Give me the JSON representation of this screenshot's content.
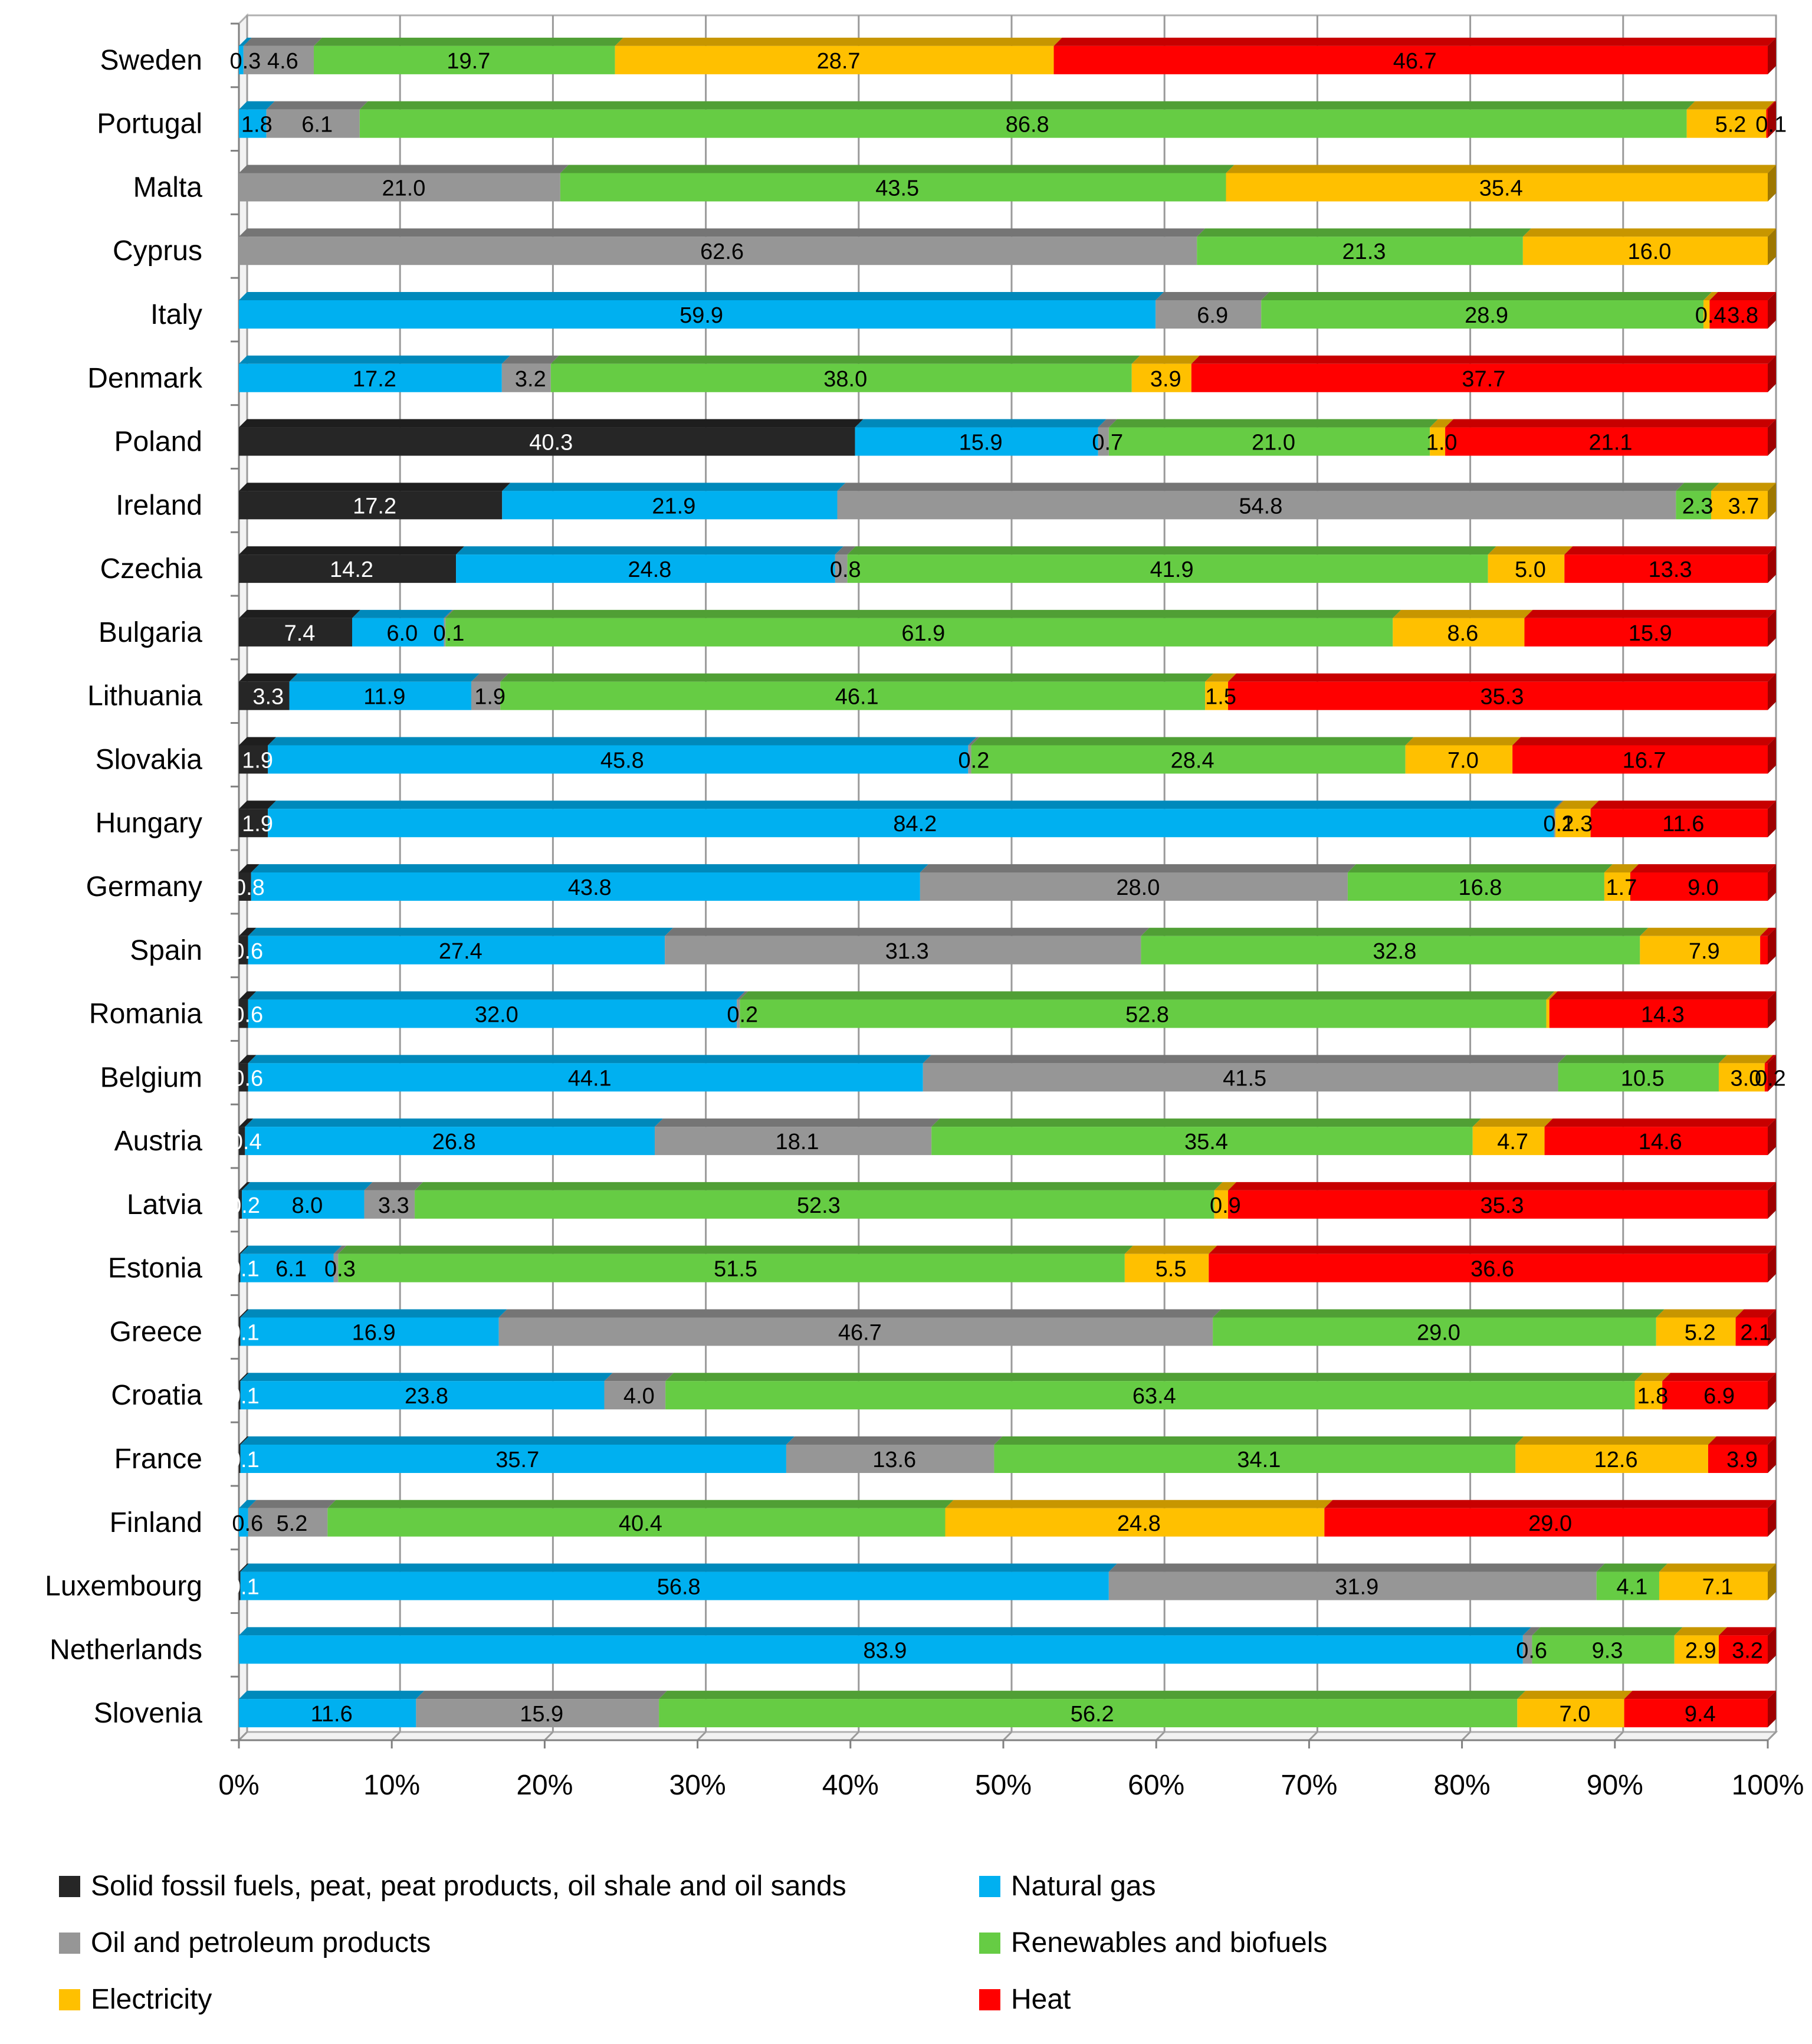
{
  "chart_data": {
    "type": "bar",
    "orientation": "horizontal",
    "stacked": "percent",
    "title": "",
    "xlabel": "",
    "ylabel": "",
    "xlim": [
      0,
      100
    ],
    "x_ticks": [
      "0%",
      "10%",
      "20%",
      "30%",
      "40%",
      "50%",
      "60%",
      "70%",
      "80%",
      "90%",
      "100%"
    ],
    "grid": true,
    "legend_position": "bottom",
    "categories": [
      "Sweden",
      "Portugal",
      "Malta",
      "Cyprus",
      "Italy",
      "Denmark",
      "Poland",
      "Ireland",
      "Czechia",
      "Bulgaria",
      "Lithuania",
      "Slovakia",
      "Hungary",
      "Germany",
      "Spain",
      "Romania",
      "Belgium",
      "Austria",
      "Latvia",
      "Estonia",
      "Greece",
      "Croatia",
      "France",
      "Finland",
      "Luxembourg",
      "Netherlands",
      "Slovenia"
    ],
    "series": [
      {
        "name": "Solid fossil fuels, peat, peat products, oil shale and oil sands",
        "color": "#262626",
        "values": [
          0,
          0,
          0,
          0,
          0,
          0,
          40.3,
          17.2,
          14.2,
          7.4,
          3.3,
          1.9,
          1.9,
          0.8,
          0.6,
          0.6,
          0.6,
          0.4,
          0.2,
          0.1,
          0.1,
          0.1,
          0.1,
          0,
          0.1,
          0,
          0
        ],
        "labels": [
          "",
          "",
          "",
          "",
          "",
          "",
          "40.3",
          "17.2",
          "14.2",
          "7.4",
          "3.3",
          "1.9",
          "1.9",
          "0.8",
          "0.6",
          "0.6",
          "0.6",
          "0.4",
          "0.2",
          "0.1",
          "0.1",
          "0.1",
          "0.1",
          "",
          "0.1",
          "",
          ""
        ]
      },
      {
        "name": "Natural gas",
        "color": "#00b0f0",
        "values": [
          0.3,
          1.8,
          0,
          0,
          59.9,
          17.2,
          15.9,
          21.9,
          24.8,
          6.0,
          11.9,
          45.8,
          84.2,
          43.8,
          27.4,
          32.0,
          44.1,
          26.8,
          8.0,
          6.1,
          16.9,
          23.8,
          35.7,
          0.6,
          56.8,
          83.9,
          11.6
        ],
        "labels": [
          "0.3",
          "1.8",
          "",
          "",
          "59.9",
          "17.2",
          "15.9",
          "21.9",
          "24.8",
          "6.0",
          "11.9",
          "45.8",
          "84.2",
          "43.8",
          "27.4",
          "32.0",
          "44.1",
          "26.8",
          "8.0",
          "6.1",
          "16.9",
          "23.8",
          "35.7",
          "0.6",
          "56.8",
          "83.9",
          "11.6"
        ]
      },
      {
        "name": "Oil and petroleum products",
        "color": "#969696",
        "values": [
          4.6,
          6.1,
          21.0,
          62.6,
          6.9,
          3.2,
          0.7,
          54.8,
          0.8,
          0.1,
          1.9,
          0.2,
          0.1,
          28.0,
          31.3,
          0.2,
          41.5,
          18.1,
          3.3,
          0.3,
          46.7,
          4.0,
          13.6,
          5.2,
          31.9,
          0.6,
          15.9
        ],
        "labels": [
          "4.6",
          "6.1",
          "21.0",
          "62.6",
          "6.9",
          "3.2",
          "0.7",
          "54.8",
          "0.8",
          "0.1",
          "1.9",
          "0.2",
          "0.1",
          "28.0",
          "31.3",
          "0.2",
          "41.5",
          "18.1",
          "3.3",
          "0.3",
          "46.7",
          "4.0",
          "13.6",
          "5.2",
          "31.9",
          "0.6",
          "15.9"
        ]
      },
      {
        "name": "Renewables and biofuels",
        "color": "#66cc44",
        "values": [
          19.7,
          86.8,
          43.5,
          21.3,
          28.9,
          38.0,
          21.0,
          2.3,
          41.9,
          61.9,
          46.1,
          28.4,
          0,
          16.8,
          32.8,
          52.8,
          10.5,
          35.4,
          52.3,
          51.5,
          29.0,
          63.4,
          34.1,
          40.4,
          4.1,
          9.3,
          56.2
        ],
        "labels": [
          "19.7",
          "86.8",
          "43.5",
          "21.3",
          "28.9",
          "38.0",
          "21.0",
          "2.3",
          "41.9",
          "61.9",
          "46.1",
          "28.4",
          "",
          "16.8",
          "32.8",
          "52.8",
          "10.5",
          "35.4",
          "52.3",
          "51.5",
          "29.0",
          "63.4",
          "34.1",
          "40.4",
          "4.1",
          "9.3",
          "56.2"
        ]
      },
      {
        "name": "Electricity",
        "color": "#ffc000",
        "values": [
          28.7,
          5.2,
          35.4,
          16.0,
          0.4,
          3.9,
          1.0,
          3.7,
          5.0,
          8.6,
          1.5,
          7.0,
          2.3,
          1.7,
          7.9,
          0.2,
          3.0,
          4.7,
          0.9,
          5.5,
          5.2,
          1.8,
          12.6,
          24.8,
          7.1,
          2.9,
          7.0
        ],
        "labels": [
          "28.7",
          "5.2",
          "35.4",
          "16.0",
          "0.4",
          "3.9",
          "1.0",
          "3.7",
          "5.0",
          "8.6",
          "1.5",
          "7.0",
          "2.3",
          "1.7",
          "7.9",
          "",
          "3.0",
          "4.7",
          "0.9",
          "5.5",
          "5.2",
          "1.8",
          "12.6",
          "24.8",
          "7.1",
          "2.9",
          "7.0"
        ]
      },
      {
        "name": "Heat",
        "color": "#ff0000",
        "values": [
          46.7,
          0.1,
          0,
          0,
          3.8,
          37.7,
          21.1,
          0,
          13.3,
          15.9,
          35.3,
          16.7,
          11.6,
          9.0,
          0.5,
          14.3,
          0.2,
          14.6,
          35.3,
          36.6,
          2.1,
          6.9,
          3.9,
          29.0,
          0,
          3.2,
          9.4
        ],
        "labels": [
          "46.7",
          "0.1",
          "",
          "",
          "3.8",
          "37.7",
          "21.1",
          "",
          "13.3",
          "15.9",
          "35.3",
          "16.7",
          "11.6",
          "9.0",
          "",
          "14.3",
          "0.2",
          "14.6",
          "35.3",
          "36.6",
          "2.1",
          "6.9",
          "3.9",
          "29.0",
          "",
          "3.2",
          "9.4"
        ]
      }
    ]
  },
  "legend": {
    "solid_fossil": {
      "label": "Solid fossil fuels, peat, peat products, oil shale and oil sands",
      "color": "#262626"
    },
    "natural_gas": {
      "label": "Natural gas",
      "color": "#00b0f0"
    },
    "oil": {
      "label": "Oil and petroleum products",
      "color": "#969696"
    },
    "renewables": {
      "label": "Renewables and biofuels",
      "color": "#66cc44"
    },
    "electricity": {
      "label": "Electricity",
      "color": "#ffc000"
    },
    "heat": {
      "label": "Heat",
      "color": "#ff0000"
    }
  }
}
